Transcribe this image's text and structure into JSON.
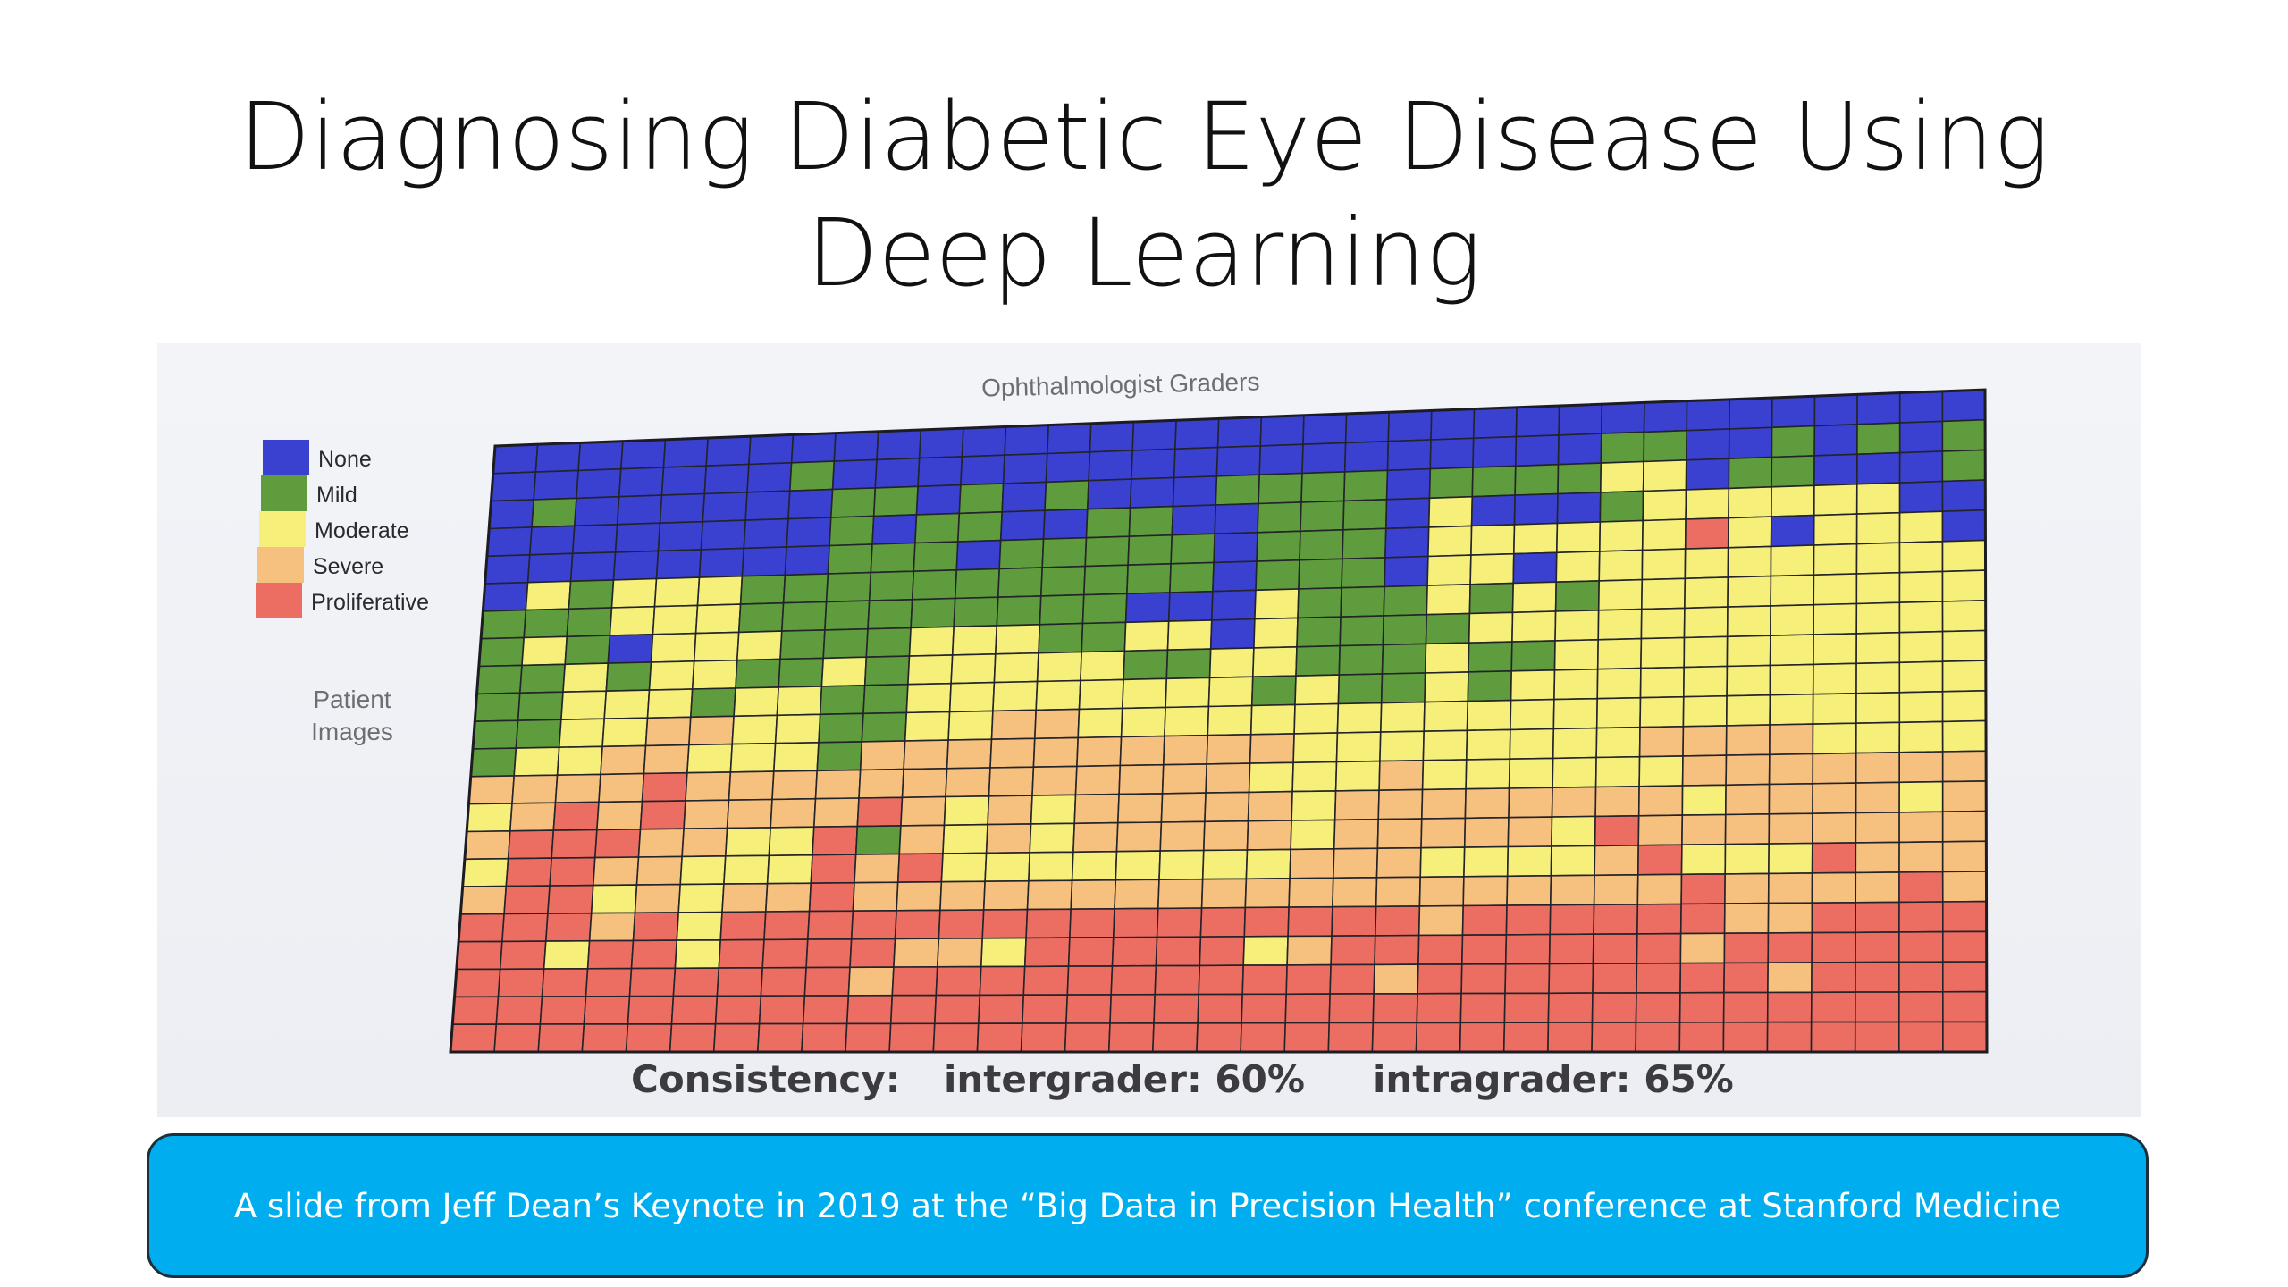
{
  "slide": {
    "title_line1": "Diagnosing Diabetic Eye Disease Using",
    "title_line2": "Deep Learning",
    "caption": "A slide from Jeff Dean’s Keynote in 2019 at the “Big Data in Precision Health” conference at Stanford Medicine"
  },
  "chart_data": {
    "type": "heatmap",
    "title": "Ophthalmologist Graders",
    "ylabel_line1": "Patient",
    "ylabel_line2": "Images",
    "footer": {
      "label": "Consistency:",
      "intergrader": "intergrader: 60%",
      "intragrader": "intragrader: 65%"
    },
    "legend": [
      {
        "label": "None",
        "color": "#3a41d1"
      },
      {
        "label": "Mild",
        "color": "#5f9c3d"
      },
      {
        "label": "Moderate",
        "color": "#f6ef7a"
      },
      {
        "label": "Severe",
        "color": "#f6c07e"
      },
      {
        "label": "Proliferative",
        "color": "#ec6e63"
      }
    ],
    "grades": [
      "None",
      "Mild",
      "Moderate",
      "Severe",
      "Proliferative"
    ],
    "grid_lines": true,
    "rows": [
      "00000000000000000000000000000000000",
      "00000001000000000000000000110010101",
      "01000000110101000111101111220110001",
      "00000000101100110011102000122222200",
      "00000000111011111011102222224202220",
      "02122211111111111011102202222222222",
      "11122211111111100021112121222222222",
      "12102221112221122021111222222222222",
      "11212211212222211221112112222222222",
      "11222122112222222212112122222222222",
      "11223322112233222222222222222222222",
      "12233222133333333332222222233332222",
      "33334333333333333322232222223333333",
      "23434333343232333332333333332333323",
      "34443322413232333332333332433333333",
      "24433222434222222223332222342224333",
      "34423233433333333333333333334333343",
      "44434244444444444444443444444334444",
      "44244244443324444423444444443444444",
      "44444444434444444444434444444434444",
      "44444444444444444444444444444444444",
      "44444444444444444444444444444444444"
    ]
  }
}
